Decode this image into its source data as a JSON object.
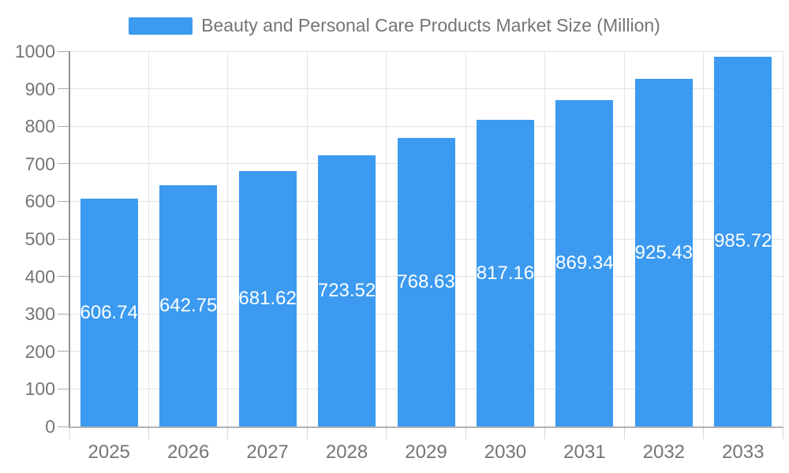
{
  "legend": {
    "label": "Beauty and Personal Care Products Market Size (Million)"
  },
  "chart_data": {
    "type": "bar",
    "title": "Beauty and Personal Care Products Market Size (Million)",
    "categories": [
      "2025",
      "2026",
      "2027",
      "2028",
      "2029",
      "2030",
      "2031",
      "2032",
      "2033"
    ],
    "values": [
      606.74,
      642.75,
      681.62,
      723.52,
      768.63,
      817.16,
      869.34,
      925.43,
      985.72
    ],
    "value_labels": [
      "606.74",
      "642.75",
      "681.62",
      "723.52",
      "768.63",
      "817.16",
      "869.34",
      "925.43",
      "985.72"
    ],
    "xlabel": "",
    "ylabel": "",
    "ylim": [
      0,
      1000
    ],
    "yticks": [
      0,
      100,
      200,
      300,
      400,
      500,
      600,
      700,
      800,
      900,
      1000
    ],
    "grid": true,
    "legend_position": "top-center",
    "bar_color": "#3c9af0",
    "value_label_color": "#ffffff"
  },
  "colors": {
    "bar": "#3c9af0",
    "axis_text": "#757575",
    "value_text": "#ffffff",
    "gridline": "#e4e4e4",
    "y_axis_line": "#949494",
    "x_axis_line": "#b3b3b3",
    "background": "#ffffff"
  }
}
